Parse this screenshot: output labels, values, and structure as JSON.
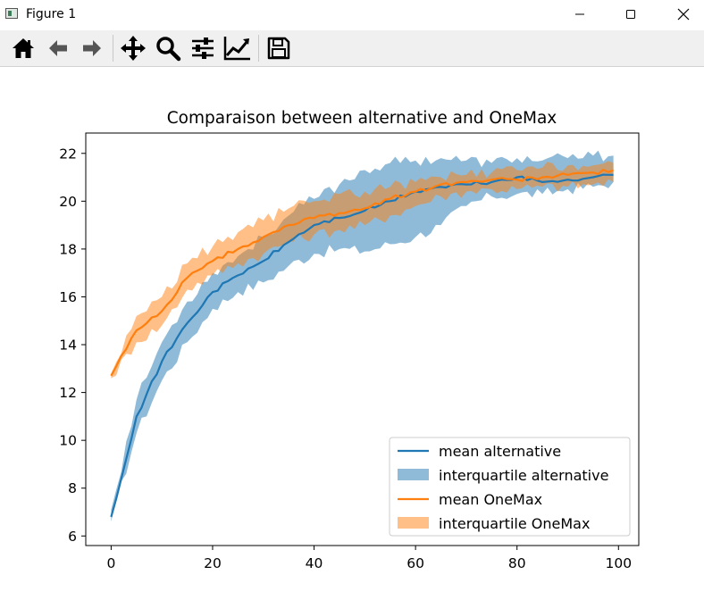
{
  "window": {
    "title": "Figure 1",
    "controls": [
      "minimize-icon",
      "maximize-icon",
      "close-icon"
    ]
  },
  "toolbar": {
    "tools": [
      "home-icon",
      "back-arrow-icon",
      "forward-arrow-icon",
      "pan-move-icon",
      "zoom-magnifier-icon",
      "subplots-config-icon",
      "edit-axis-icon",
      "save-figure-icon"
    ]
  },
  "colors": {
    "alternative": "#1f77b4",
    "onemax": "#ff7f0e"
  },
  "chart_data": {
    "type": "line",
    "title": "Comparaison between alternative and OneMax",
    "xlabel": "",
    "ylabel": "",
    "xlim": [
      -5,
      104
    ],
    "ylim": [
      5.6,
      22.85
    ],
    "xticks": [
      0,
      20,
      40,
      60,
      80,
      100
    ],
    "yticks": [
      6,
      8,
      10,
      12,
      14,
      16,
      18,
      20,
      22
    ],
    "grid": false,
    "legend_position": "lower-right",
    "legend": [
      "mean alternative",
      "interquartile alternative",
      "mean OneMax",
      "interquartile OneMax"
    ],
    "x": [
      0,
      5,
      10,
      15,
      20,
      25,
      30,
      35,
      40,
      45,
      50,
      55,
      60,
      65,
      70,
      75,
      80,
      85,
      90,
      95,
      99
    ],
    "series": [
      {
        "name": "mean alternative",
        "kind": "line",
        "color": "#1f77b4",
        "values": [
          6.8,
          11.0,
          13.3,
          14.9,
          16.2,
          16.9,
          17.5,
          18.3,
          19.0,
          19.3,
          19.6,
          20.0,
          20.4,
          20.6,
          20.7,
          20.8,
          21.0,
          20.8,
          20.9,
          21.0,
          21.1
        ]
      },
      {
        "name": "interquartile alternative",
        "kind": "band",
        "color": "#1f77b4",
        "low": [
          6.6,
          10.3,
          12.5,
          14.1,
          15.5,
          16.2,
          16.6,
          17.3,
          17.8,
          18.0,
          17.9,
          18.2,
          18.5,
          19.0,
          19.8,
          20.2,
          20.3,
          20.3,
          20.5,
          20.6,
          20.8
        ],
        "high": [
          7.1,
          11.7,
          14.1,
          15.8,
          17.0,
          17.7,
          18.5,
          19.4,
          20.1,
          20.7,
          21.3,
          21.6,
          21.7,
          21.8,
          21.7,
          21.6,
          21.8,
          21.7,
          21.8,
          21.9,
          21.9
        ]
      },
      {
        "name": "mean OneMax",
        "kind": "line",
        "color": "#ff7f0e",
        "values": [
          12.7,
          14.6,
          15.4,
          16.8,
          17.5,
          18.0,
          18.5,
          19.0,
          19.3,
          19.5,
          19.7,
          20.1,
          20.4,
          20.7,
          20.8,
          20.9,
          20.9,
          21.0,
          21.1,
          21.2,
          21.3
        ]
      },
      {
        "name": "interquartile OneMax",
        "kind": "band",
        "color": "#ff7f0e",
        "low": [
          12.6,
          14.1,
          14.8,
          16.3,
          16.9,
          17.4,
          17.8,
          18.3,
          18.6,
          18.8,
          19.0,
          19.4,
          19.8,
          20.2,
          20.4,
          20.5,
          20.5,
          20.6,
          20.6,
          20.7,
          20.8
        ],
        "high": [
          12.8,
          15.2,
          16.0,
          17.4,
          18.1,
          18.7,
          19.2,
          19.7,
          20.0,
          20.3,
          20.4,
          20.6,
          20.8,
          21.0,
          21.1,
          21.2,
          21.3,
          21.4,
          21.5,
          21.5,
          21.6
        ]
      }
    ]
  }
}
